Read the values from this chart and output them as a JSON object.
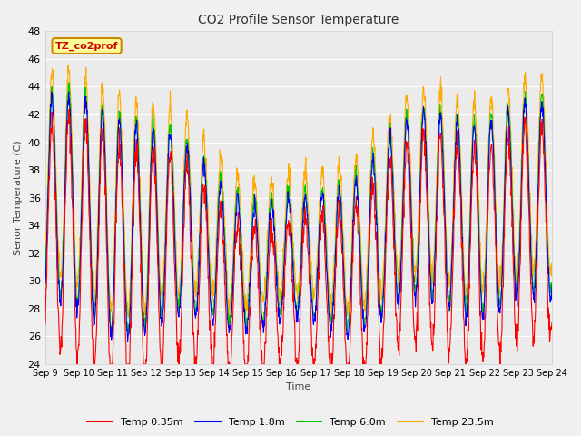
{
  "title": "CO2 Profile Sensor Temperature",
  "ylabel": "Senor Temperature (C)",
  "xlabel": "Time",
  "ylim": [
    24,
    48
  ],
  "yticks": [
    24,
    26,
    28,
    30,
    32,
    34,
    36,
    38,
    40,
    42,
    44,
    46,
    48
  ],
  "fig_facecolor": "#f0f0f0",
  "plot_bg_color": "#ebebeb",
  "grid_color": "#ffffff",
  "series": [
    {
      "label": "Temp 0.35m",
      "color": "#ff0000"
    },
    {
      "label": "Temp 1.8m",
      "color": "#0000ff"
    },
    {
      "label": "Temp 6.0m",
      "color": "#00cc00"
    },
    {
      "label": "Temp 23.5m",
      "color": "#ffaa00"
    }
  ],
  "legend_box": {
    "text": "TZ_co2prof",
    "facecolor": "#ffff99",
    "edgecolor": "#cc8800",
    "textcolor": "#cc0000"
  },
  "xtick_labels": [
    "Sep 9",
    "Sep 10",
    "Sep 11",
    "Sep 12",
    "Sep 13",
    "Sep 14",
    "Sep 15",
    "Sep 16",
    "Sep 17",
    "Sep 18",
    "Sep 19",
    "Sep 20",
    "Sep 21",
    "Sep 22",
    "Sep 23",
    "Sep 24"
  ]
}
